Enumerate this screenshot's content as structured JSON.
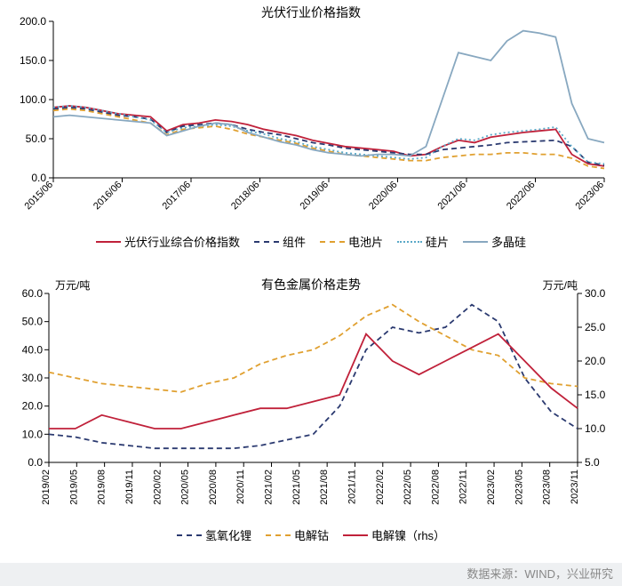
{
  "chart1": {
    "type": "line",
    "title": "光伏行业价格指数",
    "title_fontsize": 14,
    "ylim": [
      0,
      200
    ],
    "ytick_step": 50,
    "yticks": [
      "0.0",
      "50.0",
      "100.0",
      "150.0",
      "200.0"
    ],
    "x_categories": [
      "2015/06",
      "2016/06",
      "2017/06",
      "2018/06",
      "2019/06",
      "2020/06",
      "2021/06",
      "2022/06",
      "2023/06"
    ],
    "x_label_rotation": 45,
    "background_color": "#ffffff",
    "axis_color": "#000000",
    "line_width": 1.8,
    "series": [
      {
        "name": "光伏行业综合价格指数",
        "legend": "光伏行业综合价格指数",
        "color": "#c0213a",
        "dash": "none",
        "data": [
          90,
          92,
          90,
          86,
          82,
          80,
          78,
          60,
          68,
          70,
          74,
          72,
          68,
          62,
          58,
          54,
          48,
          44,
          40,
          38,
          36,
          34,
          28,
          30,
          40,
          48,
          45,
          52,
          55,
          58,
          60,
          62,
          30,
          18,
          15
        ]
      },
      {
        "name": "组件",
        "legend": "组件",
        "color": "#2b3a70",
        "dash": "6,4",
        "data": [
          88,
          90,
          88,
          84,
          80,
          78,
          75,
          58,
          66,
          68,
          70,
          68,
          62,
          58,
          55,
          50,
          45,
          42,
          38,
          36,
          34,
          32,
          30,
          30,
          36,
          38,
          40,
          42,
          45,
          46,
          47,
          48,
          40,
          20,
          16
        ]
      },
      {
        "name": "电池片",
        "legend": "电池片",
        "color": "#e0a030",
        "dash": "6,4",
        "data": [
          86,
          88,
          86,
          82,
          78,
          74,
          70,
          55,
          62,
          64,
          66,
          62,
          56,
          52,
          48,
          44,
          38,
          34,
          30,
          28,
          26,
          24,
          22,
          22,
          26,
          28,
          30,
          30,
          32,
          32,
          30,
          30,
          25,
          15,
          12
        ]
      },
      {
        "name": "硅片",
        "legend": "硅片",
        "color": "#5aa9c8",
        "dash": "2,3",
        "data": [
          90,
          92,
          90,
          86,
          82,
          78,
          74,
          58,
          64,
          66,
          68,
          66,
          60,
          56,
          50,
          46,
          40,
          36,
          32,
          30,
          28,
          26,
          24,
          26,
          40,
          50,
          48,
          55,
          58,
          60,
          62,
          65,
          40,
          20,
          18
        ]
      },
      {
        "name": "多晶硅",
        "legend": "多晶硅",
        "color": "#88a8c0",
        "dash": "none",
        "data": [
          78,
          80,
          78,
          76,
          74,
          72,
          70,
          54,
          60,
          66,
          70,
          68,
          58,
          52,
          46,
          42,
          36,
          32,
          30,
          28,
          30,
          30,
          28,
          40,
          100,
          160,
          155,
          150,
          175,
          188,
          185,
          180,
          95,
          50,
          45
        ]
      }
    ]
  },
  "chart2": {
    "type": "line",
    "title": "有色金属价格走势",
    "title_fontsize": 14,
    "y_left_label": "万元/吨",
    "y_right_label": "万元/吨",
    "y_left_lim": [
      0,
      60
    ],
    "y_left_tick_step": 10,
    "y_left_ticks": [
      "0.0",
      "10.0",
      "20.0",
      "30.0",
      "40.0",
      "50.0",
      "60.0"
    ],
    "y_right_lim": [
      5,
      30
    ],
    "y_right_tick_step": 5,
    "y_right_ticks": [
      "5.0",
      "10.0",
      "15.0",
      "20.0",
      "25.0",
      "30.0"
    ],
    "x_categories": [
      "2019/02",
      "2019/05",
      "2019/08",
      "2019/11",
      "2020/02",
      "2020/05",
      "2020/08",
      "2020/11",
      "2021/02",
      "2021/05",
      "2021/08",
      "2021/11",
      "2022/02",
      "2022/05",
      "2022/08",
      "2022/11",
      "2023/02",
      "2023/05",
      "2023/08",
      "2023/11"
    ],
    "x_label_rotation": 90,
    "background_color": "#ffffff",
    "axis_color": "#000000",
    "line_width": 1.8,
    "series": [
      {
        "name": "氢氧化锂",
        "legend": "氢氧化锂",
        "color": "#2b3a70",
        "dash": "6,4",
        "axis": "left",
        "data": [
          10,
          9,
          7,
          6,
          5,
          5,
          5,
          5,
          6,
          8,
          10,
          20,
          40,
          48,
          46,
          48,
          56,
          50,
          30,
          18,
          12
        ]
      },
      {
        "name": "电解钴",
        "legend": "电解钴",
        "color": "#e0a030",
        "dash": "6,4",
        "axis": "left",
        "data": [
          32,
          30,
          28,
          27,
          26,
          25,
          28,
          30,
          35,
          38,
          40,
          45,
          52,
          56,
          50,
          45,
          40,
          38,
          30,
          28,
          27
        ]
      },
      {
        "name": "电解镍（rhs）",
        "legend": "电解镍（rhs）",
        "color": "#c0213a",
        "dash": "none",
        "axis": "right",
        "data": [
          10,
          10,
          12,
          11,
          10,
          10,
          11,
          12,
          13,
          13,
          14,
          15,
          24,
          20,
          18,
          20,
          22,
          24,
          20,
          16,
          13
        ]
      }
    ]
  },
  "source_label": "数据来源：WIND，兴业研究"
}
